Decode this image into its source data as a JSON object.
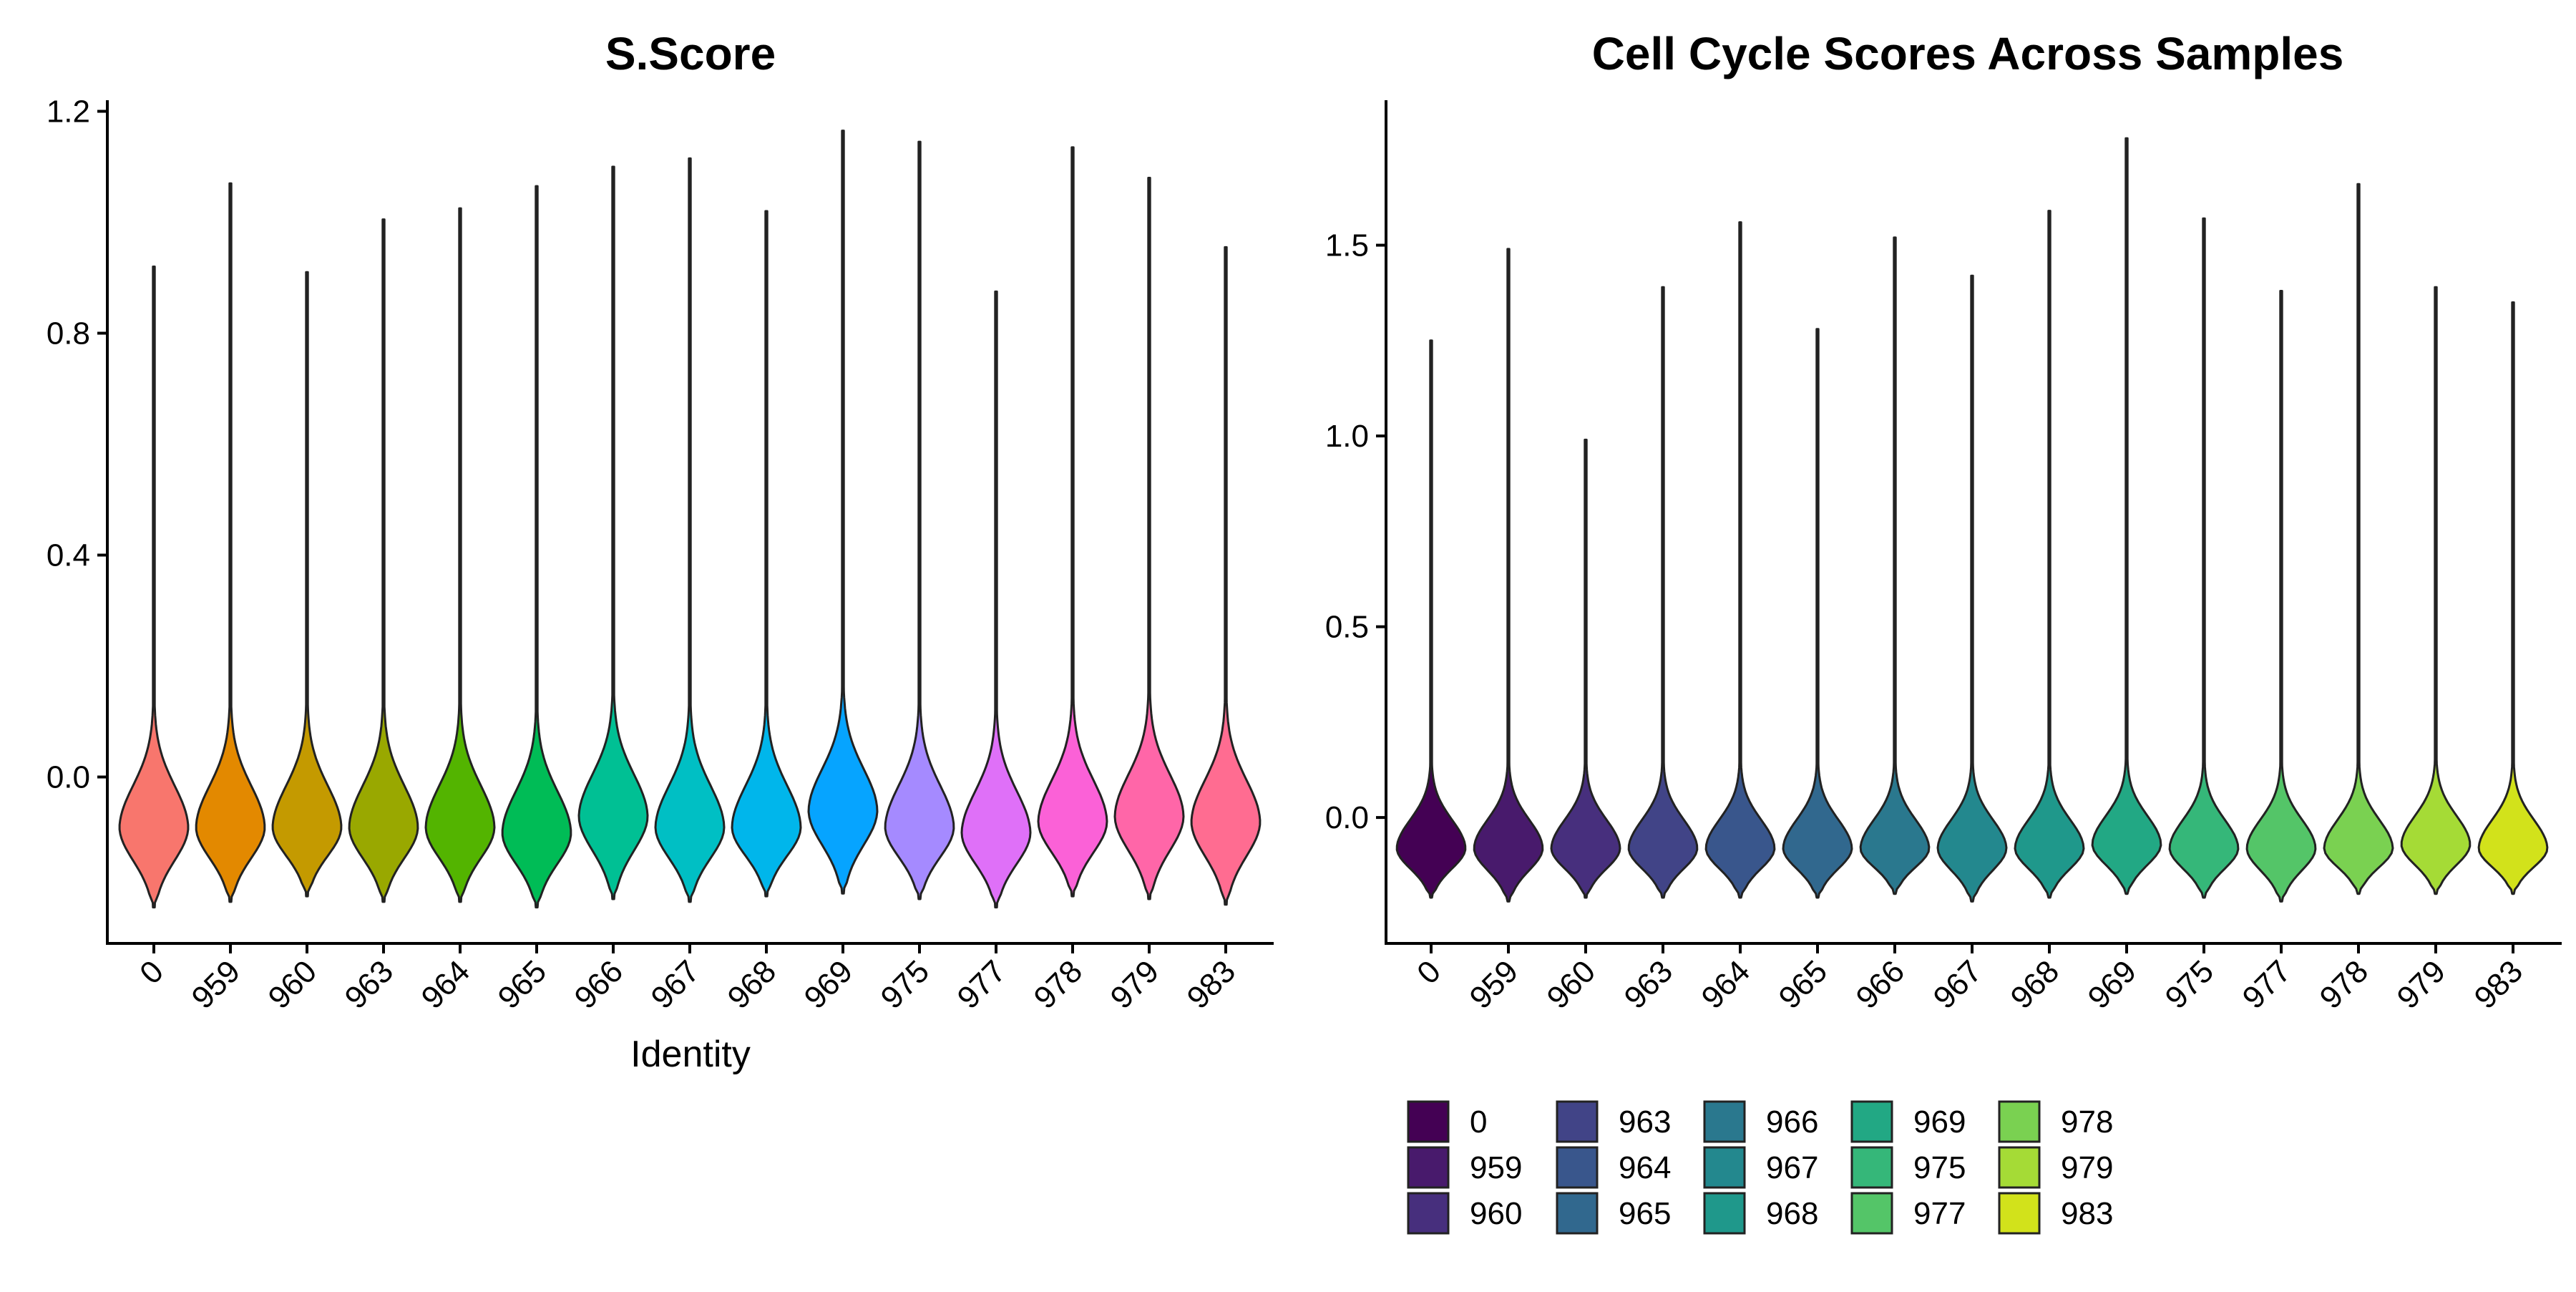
{
  "categories": [
    "0",
    "959",
    "960",
    "963",
    "964",
    "965",
    "966",
    "967",
    "968",
    "969",
    "975",
    "977",
    "978",
    "979",
    "983"
  ],
  "chart_data": [
    {
      "type": "violin",
      "title": "S.Score",
      "xlabel": "Identity",
      "ylabel": "",
      "ylim": [
        -0.3,
        1.22
      ],
      "yticks": [
        "0.0",
        "0.4",
        "0.8",
        "1.2"
      ],
      "ytick_values": [
        0.0,
        0.4,
        0.8,
        1.2
      ],
      "grid": false,
      "legend": "none",
      "colors": [
        "#F8766D",
        "#E38900",
        "#C49A00",
        "#99A800",
        "#53B400",
        "#00BC56",
        "#00C094",
        "#00BFC4",
        "#00B6EB",
        "#06A4FF",
        "#A58AFF",
        "#DF70F8",
        "#FB61D7",
        "#FF66A8",
        "#FF6C91"
      ],
      "series": [
        {
          "name": "0",
          "min": -0.235,
          "max": 0.92,
          "mode": -0.09
        },
        {
          "name": "959",
          "min": -0.225,
          "max": 1.07,
          "mode": -0.09
        },
        {
          "name": "960",
          "min": -0.215,
          "max": 0.91,
          "mode": -0.09
        },
        {
          "name": "963",
          "min": -0.225,
          "max": 1.005,
          "mode": -0.09
        },
        {
          "name": "964",
          "min": -0.225,
          "max": 1.025,
          "mode": -0.09
        },
        {
          "name": "965",
          "min": -0.235,
          "max": 1.065,
          "mode": -0.1
        },
        {
          "name": "966",
          "min": -0.22,
          "max": 1.1,
          "mode": -0.07
        },
        {
          "name": "967",
          "min": -0.225,
          "max": 1.115,
          "mode": -0.09
        },
        {
          "name": "968",
          "min": -0.215,
          "max": 1.02,
          "mode": -0.09
        },
        {
          "name": "969",
          "min": -0.21,
          "max": 1.165,
          "mode": -0.06
        },
        {
          "name": "975",
          "min": -0.22,
          "max": 1.145,
          "mode": -0.09
        },
        {
          "name": "977",
          "min": -0.235,
          "max": 0.875,
          "mode": -0.1
        },
        {
          "name": "978",
          "min": -0.215,
          "max": 1.135,
          "mode": -0.08
        },
        {
          "name": "979",
          "min": -0.22,
          "max": 1.08,
          "mode": -0.07
        },
        {
          "name": "983",
          "min": -0.23,
          "max": 0.955,
          "mode": -0.08
        }
      ]
    },
    {
      "type": "violin",
      "title": "Cell Cycle Scores Across Samples",
      "xlabel": "",
      "ylabel": "",
      "ylim": [
        -0.33,
        1.88
      ],
      "yticks": [
        "0.0",
        "0.5",
        "1.0",
        "1.5"
      ],
      "ytick_values": [
        0.0,
        0.5,
        1.0,
        1.5
      ],
      "grid": false,
      "legend": "bottom",
      "colors": [
        "#440154",
        "#481A6C",
        "#472F7D",
        "#414487",
        "#39568C",
        "#31688E",
        "#2A788E",
        "#23888E",
        "#1F988B",
        "#22A884",
        "#35B779",
        "#54C568",
        "#7AD151",
        "#A5DB36",
        "#D2E21B"
      ],
      "series": [
        {
          "name": "0",
          "min": -0.21,
          "max": 1.25,
          "mode": -0.08
        },
        {
          "name": "959",
          "min": -0.22,
          "max": 1.49,
          "mode": -0.08
        },
        {
          "name": "960",
          "min": -0.21,
          "max": 0.99,
          "mode": -0.08
        },
        {
          "name": "963",
          "min": -0.21,
          "max": 1.39,
          "mode": -0.08
        },
        {
          "name": "964",
          "min": -0.21,
          "max": 1.56,
          "mode": -0.08
        },
        {
          "name": "965",
          "min": -0.21,
          "max": 1.28,
          "mode": -0.08
        },
        {
          "name": "966",
          "min": -0.2,
          "max": 1.52,
          "mode": -0.08
        },
        {
          "name": "967",
          "min": -0.22,
          "max": 1.42,
          "mode": -0.08
        },
        {
          "name": "968",
          "min": -0.21,
          "max": 1.59,
          "mode": -0.08
        },
        {
          "name": "969",
          "min": -0.2,
          "max": 1.78,
          "mode": -0.07
        },
        {
          "name": "975",
          "min": -0.21,
          "max": 1.57,
          "mode": -0.08
        },
        {
          "name": "977",
          "min": -0.22,
          "max": 1.38,
          "mode": -0.08
        },
        {
          "name": "978",
          "min": -0.2,
          "max": 1.66,
          "mode": -0.08
        },
        {
          "name": "979",
          "min": -0.2,
          "max": 1.39,
          "mode": -0.07
        },
        {
          "name": "983",
          "min": -0.2,
          "max": 1.35,
          "mode": -0.08
        }
      ]
    }
  ],
  "legend": {
    "items": [
      "0",
      "959",
      "960",
      "963",
      "964",
      "965",
      "966",
      "967",
      "968",
      "969",
      "975",
      "977",
      "978",
      "979",
      "983"
    ],
    "colors": [
      "#440154",
      "#481A6C",
      "#472F7D",
      "#414487",
      "#39568C",
      "#31688E",
      "#2A788E",
      "#23888E",
      "#1F988B",
      "#22A884",
      "#35B779",
      "#54C568",
      "#7AD151",
      "#A5DB36",
      "#D2E21B"
    ]
  }
}
